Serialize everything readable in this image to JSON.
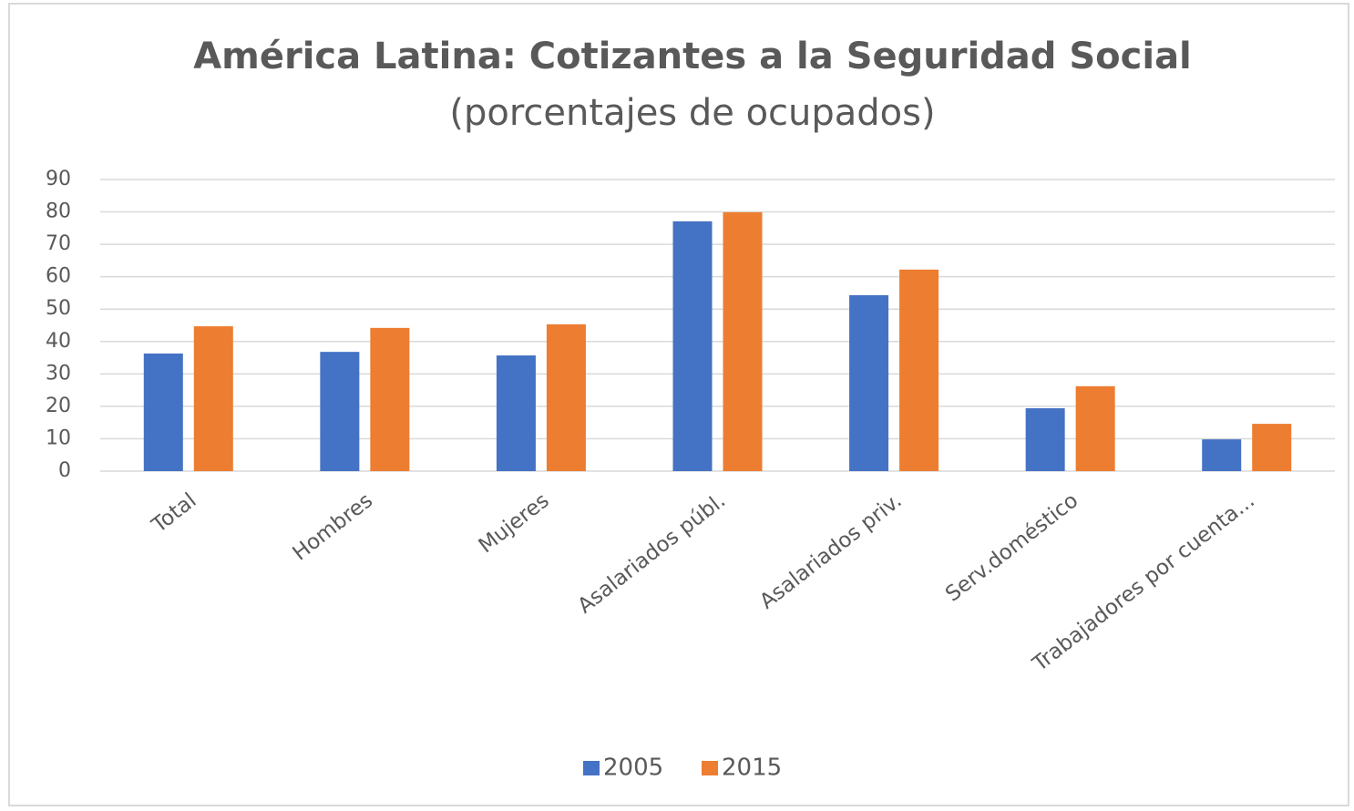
{
  "chart_data": {
    "type": "bar",
    "title": "América Latina: Cotizantes a la Seguridad Social",
    "subtitle": "(porcentajes de ocupados)",
    "categories": [
      "Total",
      "Hombres",
      "Mujeres",
      "Asalariados públ.",
      "Asalariados priv.",
      "Serv.doméstico",
      "Trabajadores por cuenta..."
    ],
    "series": [
      {
        "name": "2005",
        "color": "#4472c4",
        "values": [
          36.3,
          36.8,
          35.7,
          77.1,
          54.3,
          19.4,
          9.8
        ]
      },
      {
        "name": "2015",
        "color": "#ed7d31",
        "values": [
          44.7,
          44.2,
          45.3,
          79.9,
          62.2,
          26.2,
          14.6
        ]
      }
    ],
    "ylim": [
      0,
      90
    ],
    "yticks": [
      0,
      10,
      20,
      30,
      40,
      50,
      60,
      70,
      80,
      90
    ],
    "grid": true,
    "legend": "bottom"
  }
}
